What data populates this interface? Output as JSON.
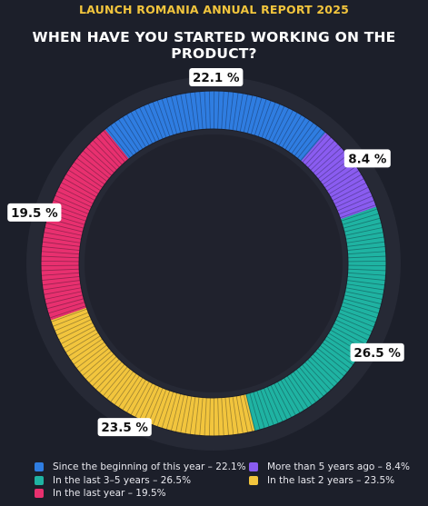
{
  "header": {
    "report_title": "LAUNCH ROMANIA ANNUAL REPORT 2025",
    "chart_title": "WHEN HAVE YOU STARTED WORKING ON THE PRODUCT?"
  },
  "chart_data": {
    "type": "pie",
    "title": "WHEN HAVE YOU STARTED WORKING ON THE PRODUCT?",
    "unit": "%",
    "legend_position": "bottom",
    "slices": [
      {
        "label": "Since the beginning of this year",
        "value": 22.1,
        "data_label": "22.1 %",
        "legend": "Since the beginning of this year – 22.1%",
        "color": "#2f7de1"
      },
      {
        "label": "More than 5 years ago",
        "value": 8.4,
        "data_label": "8.4 %",
        "legend": "More than 5 years ago – 8.4%",
        "color": "#8a5cf0"
      },
      {
        "label": "In the last 3–5 years",
        "value": 26.5,
        "data_label": "26.5 %",
        "legend": "In the last 3–5 years – 26.5%",
        "color": "#1fb3a2"
      },
      {
        "label": "In the last 2 years",
        "value": 23.5,
        "data_label": "23.5 %",
        "legend": "In the last 2 years – 23.5%",
        "color": "#f2c53d"
      },
      {
        "label": "In the last year",
        "value": 19.5,
        "data_label": "19.5 %",
        "legend": "In the last year – 19.5%",
        "color": "#e8306f"
      }
    ],
    "legend_order": [
      0,
      2,
      4,
      1,
      3
    ]
  }
}
